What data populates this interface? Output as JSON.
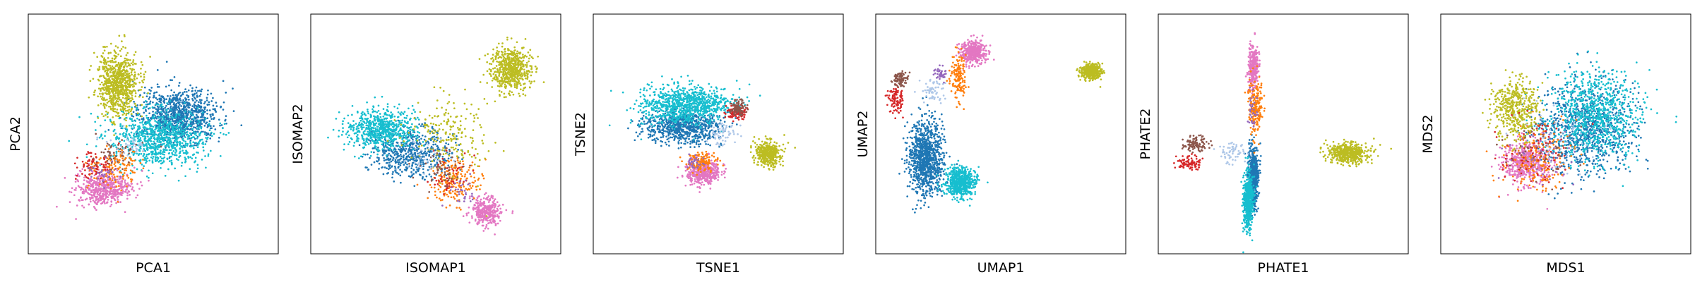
{
  "chart_data": [
    {
      "type": "scatter",
      "xlabel": "PCA1",
      "ylabel": "PCA2",
      "grid": false,
      "xticks": [],
      "yticks": [],
      "series": [
        {
          "color": "#1f77b4",
          "clusters": [
            {
              "center": [
                0.6,
                0.42
              ],
              "spread": [
                0.16,
                0.11
              ],
              "count": 900
            }
          ]
        },
        {
          "color": "#17becf",
          "clusters": [
            {
              "center": [
                0.52,
                0.52
              ],
              "spread": [
                0.19,
                0.12
              ],
              "count": 850
            }
          ]
        },
        {
          "color": "#e377c2",
          "clusters": [
            {
              "center": [
                0.3,
                0.73
              ],
              "spread": [
                0.11,
                0.07
              ],
              "count": 520
            }
          ]
        },
        {
          "color": "#ff7f0e",
          "clusters": [
            {
              "center": [
                0.34,
                0.64
              ],
              "spread": [
                0.1,
                0.08
              ],
              "count": 150
            }
          ]
        },
        {
          "color": "#bcbd22",
          "clusters": [
            {
              "center": [
                0.36,
                0.29
              ],
              "spread": [
                0.08,
                0.13
              ],
              "count": 800
            }
          ]
        },
        {
          "color": "#d62728",
          "clusters": [
            {
              "center": [
                0.26,
                0.63
              ],
              "spread": [
                0.08,
                0.06
              ],
              "count": 70
            }
          ]
        },
        {
          "color": "#8c564b",
          "clusters": [
            {
              "center": [
                0.36,
                0.58
              ],
              "spread": [
                0.08,
                0.06
              ],
              "count": 50
            }
          ]
        },
        {
          "color": "#aec7e8",
          "clusters": [
            {
              "center": [
                0.4,
                0.55
              ],
              "spread": [
                0.09,
                0.06
              ],
              "count": 40
            }
          ]
        },
        {
          "color": "#9467bd",
          "clusters": [
            {
              "center": [
                0.3,
                0.66
              ],
              "spread": [
                0.07,
                0.05
              ],
              "count": 30
            }
          ]
        }
      ]
    },
    {
      "type": "scatter",
      "xlabel": "ISOMAP1",
      "ylabel": "ISOMAP2",
      "grid": false,
      "xticks": [],
      "yticks": [],
      "series": [
        {
          "color": "#1f77b4",
          "clusters": [
            {
              "center": [
                0.4,
                0.58
              ],
              "spread": [
                0.16,
                0.1
              ],
              "count": 550
            }
          ]
        },
        {
          "color": "#17becf",
          "clusters": [
            {
              "center": [
                0.28,
                0.48
              ],
              "spread": [
                0.14,
                0.08
              ],
              "count": 650
            }
          ]
        },
        {
          "color": "#e377c2",
          "clusters": [
            {
              "center": [
                0.7,
                0.82
              ],
              "spread": [
                0.06,
                0.06
              ],
              "count": 320
            }
          ]
        },
        {
          "color": "#ff7f0e",
          "clusters": [
            {
              "center": [
                0.58,
                0.7
              ],
              "spread": [
                0.1,
                0.09
              ],
              "count": 200
            }
          ]
        },
        {
          "color": "#bcbd22",
          "clusters": [
            {
              "center": [
                0.8,
                0.23
              ],
              "spread": [
                0.08,
                0.09
              ],
              "count": 600
            },
            {
              "center": [
                0.55,
                0.5
              ],
              "spread": [
                0.16,
                0.16
              ],
              "count": 200
            }
          ]
        },
        {
          "color": "#d62728",
          "clusters": [
            {
              "center": [
                0.55,
                0.68
              ],
              "spread": [
                0.09,
                0.08
              ],
              "count": 50
            }
          ]
        },
        {
          "color": "#8c564b",
          "clusters": [
            {
              "center": [
                0.52,
                0.64
              ],
              "spread": [
                0.09,
                0.08
              ],
              "count": 50
            }
          ]
        },
        {
          "color": "#aec7e8",
          "clusters": [
            {
              "center": [
                0.45,
                0.6
              ],
              "spread": [
                0.09,
                0.07
              ],
              "count": 40
            }
          ]
        },
        {
          "color": "#9467bd",
          "clusters": [
            {
              "center": [
                0.6,
                0.73
              ],
              "spread": [
                0.07,
                0.06
              ],
              "count": 30
            }
          ]
        }
      ]
    },
    {
      "type": "scatter",
      "xlabel": "TSNE1",
      "ylabel": "TSNE2",
      "grid": false,
      "xticks": [],
      "yticks": [],
      "series": [
        {
          "color": "#1f77b4",
          "clusters": [
            {
              "center": [
                0.36,
                0.47
              ],
              "spread": [
                0.15,
                0.07
              ],
              "count": 750
            }
          ]
        },
        {
          "color": "#17becf",
          "clusters": [
            {
              "center": [
                0.37,
                0.38
              ],
              "spread": [
                0.18,
                0.08
              ],
              "count": 900
            }
          ]
        },
        {
          "color": "#e377c2",
          "clusters": [
            {
              "center": [
                0.44,
                0.66
              ],
              "spread": [
                0.07,
                0.05
              ],
              "count": 400
            }
          ]
        },
        {
          "color": "#ff7f0e",
          "clusters": [
            {
              "center": [
                0.43,
                0.62
              ],
              "spread": [
                0.06,
                0.04
              ],
              "count": 130
            }
          ]
        },
        {
          "color": "#bcbd22",
          "clusters": [
            {
              "center": [
                0.7,
                0.58
              ],
              "spread": [
                0.05,
                0.05
              ],
              "count": 420
            }
          ]
        },
        {
          "color": "#d62728",
          "clusters": [
            {
              "center": [
                0.57,
                0.41
              ],
              "spread": [
                0.04,
                0.03
              ],
              "count": 90
            }
          ]
        },
        {
          "color": "#8c564b",
          "clusters": [
            {
              "center": [
                0.58,
                0.39
              ],
              "spread": [
                0.03,
                0.03
              ],
              "count": 90
            }
          ]
        },
        {
          "color": "#aec7e8",
          "clusters": [
            {
              "center": [
                0.52,
                0.5
              ],
              "spread": [
                0.06,
                0.05
              ],
              "count": 60
            }
          ]
        },
        {
          "color": "#9467bd",
          "clusters": [
            {
              "center": [
                0.41,
                0.62
              ],
              "spread": [
                0.04,
                0.03
              ],
              "count": 30
            }
          ]
        }
      ]
    },
    {
      "type": "scatter",
      "xlabel": "UMAP1",
      "ylabel": "UMAP2",
      "grid": false,
      "xticks": [],
      "yticks": [],
      "series": [
        {
          "color": "#1f77b4",
          "clusters": [
            {
              "center": [
                0.2,
                0.6
              ],
              "spread": [
                0.07,
                0.15
              ],
              "count": 1000
            }
          ]
        },
        {
          "color": "#17becf",
          "clusters": [
            {
              "center": [
                0.34,
                0.7
              ],
              "spread": [
                0.06,
                0.06
              ],
              "count": 600
            }
          ]
        },
        {
          "color": "#e377c2",
          "clusters": [
            {
              "center": [
                0.39,
                0.16
              ],
              "spread": [
                0.05,
                0.05
              ],
              "count": 380
            }
          ]
        },
        {
          "color": "#ff7f0e",
          "clusters": [
            {
              "center": [
                0.33,
                0.26
              ],
              "spread": [
                0.03,
                0.1
              ],
              "count": 160
            }
          ]
        },
        {
          "color": "#bcbd22",
          "clusters": [
            {
              "center": [
                0.86,
                0.24
              ],
              "spread": [
                0.04,
                0.03
              ],
              "count": 420
            }
          ]
        },
        {
          "color": "#d62728",
          "clusters": [
            {
              "center": [
                0.08,
                0.36
              ],
              "spread": [
                0.03,
                0.06
              ],
              "count": 100
            }
          ]
        },
        {
          "color": "#8c564b",
          "clusters": [
            {
              "center": [
                0.1,
                0.27
              ],
              "spread": [
                0.03,
                0.03
              ],
              "count": 90
            }
          ]
        },
        {
          "color": "#aec7e8",
          "clusters": [
            {
              "center": [
                0.23,
                0.32
              ],
              "spread": [
                0.05,
                0.05
              ],
              "count": 60
            }
          ]
        },
        {
          "color": "#9467bd",
          "clusters": [
            {
              "center": [
                0.26,
                0.25
              ],
              "spread": [
                0.03,
                0.03
              ],
              "count": 40
            }
          ]
        }
      ]
    },
    {
      "type": "scatter",
      "xlabel": "PHATE1",
      "ylabel": "PHATE2",
      "grid": false,
      "xticks": [],
      "yticks": [],
      "series": [
        {
          "color": "#1f77b4",
          "clusters": [
            {
              "center": [
                0.38,
                0.68
              ],
              "spread": [
                0.02,
                0.13
              ],
              "count": 600
            }
          ]
        },
        {
          "color": "#17becf",
          "clusters": [
            {
              "center": [
                0.36,
                0.78
              ],
              "spread": [
                0.02,
                0.12
              ],
              "count": 500
            }
          ]
        },
        {
          "color": "#e377c2",
          "clusters": [
            {
              "center": [
                0.38,
                0.22
              ],
              "spread": [
                0.02,
                0.09
              ],
              "count": 280
            }
          ]
        },
        {
          "color": "#ff7f0e",
          "clusters": [
            {
              "center": [
                0.39,
                0.38
              ],
              "spread": [
                0.03,
                0.12
              ],
              "count": 200
            }
          ]
        },
        {
          "color": "#bcbd22",
          "clusters": [
            {
              "center": [
                0.76,
                0.58
              ],
              "spread": [
                0.08,
                0.04
              ],
              "count": 520
            }
          ]
        },
        {
          "color": "#d62728",
          "clusters": [
            {
              "center": [
                0.12,
                0.62
              ],
              "spread": [
                0.05,
                0.03
              ],
              "count": 90
            }
          ]
        },
        {
          "color": "#8c564b",
          "clusters": [
            {
              "center": [
                0.15,
                0.54
              ],
              "spread": [
                0.05,
                0.03
              ],
              "count": 100
            }
          ]
        },
        {
          "color": "#aec7e8",
          "clusters": [
            {
              "center": [
                0.3,
                0.58
              ],
              "spread": [
                0.06,
                0.05
              ],
              "count": 60
            }
          ]
        },
        {
          "color": "#9467bd",
          "clusters": [
            {
              "center": [
                0.38,
                0.4
              ],
              "spread": [
                0.02,
                0.08
              ],
              "count": 30
            }
          ]
        }
      ]
    },
    {
      "type": "scatter",
      "xlabel": "MDS1",
      "ylabel": "MDS2",
      "grid": false,
      "xticks": [],
      "yticks": [],
      "series": [
        {
          "color": "#1f77b4",
          "clusters": [
            {
              "center": [
                0.58,
                0.48
              ],
              "spread": [
                0.2,
                0.19
              ],
              "count": 850
            }
          ]
        },
        {
          "color": "#17becf",
          "clusters": [
            {
              "center": [
                0.62,
                0.42
              ],
              "spread": [
                0.18,
                0.18
              ],
              "count": 850
            }
          ]
        },
        {
          "color": "#e377c2",
          "clusters": [
            {
              "center": [
                0.34,
                0.62
              ],
              "spread": [
                0.09,
                0.09
              ],
              "count": 500
            }
          ]
        },
        {
          "color": "#ff7f0e",
          "clusters": [
            {
              "center": [
                0.38,
                0.6
              ],
              "spread": [
                0.14,
                0.14
              ],
              "count": 200
            }
          ]
        },
        {
          "color": "#bcbd22",
          "clusters": [
            {
              "center": [
                0.3,
                0.4
              ],
              "spread": [
                0.09,
                0.13
              ],
              "count": 450
            }
          ]
        },
        {
          "color": "#d62728",
          "clusters": [
            {
              "center": [
                0.38,
                0.56
              ],
              "spread": [
                0.15,
                0.15
              ],
              "count": 80
            }
          ]
        },
        {
          "color": "#8c564b",
          "clusters": [
            {
              "center": [
                0.4,
                0.55
              ],
              "spread": [
                0.15,
                0.15
              ],
              "count": 60
            }
          ]
        },
        {
          "color": "#aec7e8",
          "clusters": [
            {
              "center": [
                0.45,
                0.5
              ],
              "spread": [
                0.16,
                0.16
              ],
              "count": 60
            }
          ]
        },
        {
          "color": "#9467bd",
          "clusters": [
            {
              "center": [
                0.4,
                0.58
              ],
              "spread": [
                0.13,
                0.13
              ],
              "count": 40
            }
          ]
        }
      ]
    }
  ]
}
